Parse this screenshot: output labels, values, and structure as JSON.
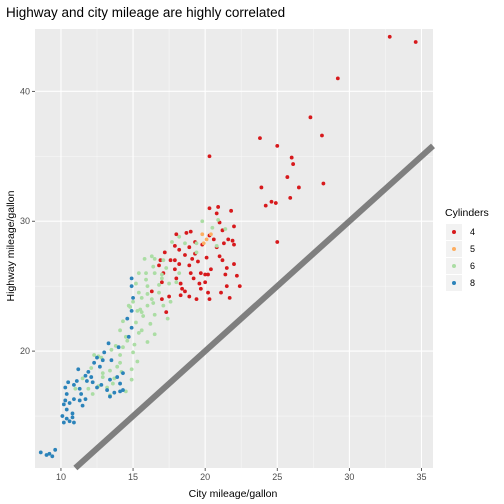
{
  "chart_data": {
    "type": "scatter",
    "title": "Highway and city mileage are highly correlated",
    "xlabel": "City mileage/gallon",
    "ylabel": "Highway mileage/gallon",
    "xlim": [
      8.2,
      35.8
    ],
    "ylim": [
      11,
      44.8
    ],
    "x_ticks": [
      10,
      15,
      20,
      25,
      30,
      35
    ],
    "y_ticks": [
      20,
      30,
      40
    ],
    "grid": true,
    "background": "#ebebeb",
    "reference_line": {
      "slope": 1,
      "intercept": 0,
      "color": "#7f7f7f"
    },
    "legend": {
      "title": "Cylinders",
      "placement": "right"
    },
    "series": [
      {
        "name": "4",
        "color": "#d7191c",
        "points": [
          [
            34.6,
            43.8
          ],
          [
            32.8,
            44.2
          ],
          [
            29.2,
            41.0
          ],
          [
            28.1,
            36.6
          ],
          [
            27.3,
            38.0
          ],
          [
            28.2,
            32.9
          ],
          [
            23.8,
            36.4
          ],
          [
            25.0,
            35.8
          ],
          [
            26.0,
            34.9
          ],
          [
            26.1,
            34.4
          ],
          [
            25.7,
            33.4
          ],
          [
            26.5,
            32.6
          ],
          [
            24.9,
            31.4
          ],
          [
            24.2,
            31.2
          ],
          [
            25.9,
            31.8
          ],
          [
            25.0,
            28.4
          ],
          [
            20.3,
            35.0
          ],
          [
            23.9,
            32.6
          ],
          [
            24.6,
            31.5
          ],
          [
            21.8,
            30.8
          ],
          [
            20.8,
            30.6
          ],
          [
            20.3,
            31.0
          ],
          [
            22.0,
            29.6
          ],
          [
            21.2,
            29.3
          ],
          [
            21.0,
            29.9
          ],
          [
            21.6,
            28.6
          ],
          [
            20.3,
            28.9
          ],
          [
            20.6,
            28.6
          ],
          [
            21.3,
            28.3
          ],
          [
            22.0,
            28.2
          ],
          [
            19.0,
            29.2
          ],
          [
            18.7,
            29.1
          ],
          [
            18.9,
            28.0
          ],
          [
            17.9,
            28.1
          ],
          [
            18.2,
            27.8
          ],
          [
            20.8,
            28.0
          ],
          [
            21.0,
            27.3
          ],
          [
            20.1,
            27.2
          ],
          [
            19.3,
            27.5
          ],
          [
            18.6,
            27.4
          ],
          [
            19.5,
            26.9
          ],
          [
            18.2,
            26.7
          ],
          [
            17.9,
            26.3
          ],
          [
            18.9,
            26.6
          ],
          [
            18.0,
            25.6
          ],
          [
            18.3,
            25.2
          ],
          [
            20.0,
            25.3
          ],
          [
            19.7,
            26.0
          ],
          [
            20.2,
            25.9
          ],
          [
            21.4,
            25.9
          ],
          [
            21.5,
            25.0
          ],
          [
            22.2,
            25.8
          ],
          [
            21.2,
            27.0
          ],
          [
            19.2,
            25.6
          ],
          [
            19.7,
            24.8
          ],
          [
            18.3,
            24.3
          ],
          [
            19.4,
            24.0
          ],
          [
            20.3,
            24.0
          ],
          [
            17.5,
            24.2
          ],
          [
            17.0,
            25.3
          ],
          [
            17.0,
            24.0
          ],
          [
            16.8,
            26.6
          ],
          [
            16.9,
            27.0
          ],
          [
            17.2,
            27.6
          ],
          [
            17.9,
            27.0
          ],
          [
            19.0,
            26.0
          ],
          [
            18.6,
            24.6
          ],
          [
            21.1,
            24.5
          ],
          [
            21.5,
            26.4
          ],
          [
            22.0,
            26.7
          ],
          [
            19.6,
            25.2
          ],
          [
            18.4,
            24.8
          ],
          [
            22.4,
            25.0
          ],
          [
            21.7,
            24.1
          ],
          [
            20.4,
            26.3
          ],
          [
            18.9,
            24.2
          ],
          [
            17.3,
            23.0
          ],
          [
            20.2,
            24.5
          ],
          [
            18.0,
            29.0
          ],
          [
            19.3,
            28.4
          ],
          [
            17.6,
            27.0
          ],
          [
            16.3,
            24.6
          ],
          [
            17.1,
            26.0
          ],
          [
            19.1,
            27.1
          ],
          [
            20.0,
            25.9
          ],
          [
            21.9,
            28.5
          ],
          [
            20.9,
            31.1
          ],
          [
            19.8,
            28.2
          ]
        ]
      },
      {
        "name": "5",
        "color": "#fdae61",
        "points": [
          [
            20.1,
            28.6
          ],
          [
            20.4,
            29.0
          ],
          [
            19.8,
            29.0
          ],
          [
            19.9,
            28.3
          ]
        ]
      },
      {
        "name": "6",
        "color": "#abdda4",
        "points": [
          [
            20.5,
            29.5
          ],
          [
            19.8,
            30.0
          ],
          [
            20.9,
            30.1
          ],
          [
            21.4,
            29.4
          ],
          [
            19.4,
            28.3
          ],
          [
            20.8,
            28.1
          ],
          [
            19.4,
            27.6
          ],
          [
            18.6,
            28.3
          ],
          [
            17.7,
            28.4
          ],
          [
            18.2,
            28.8
          ],
          [
            17.1,
            27.0
          ],
          [
            16.5,
            27.1
          ],
          [
            17.3,
            26.4
          ],
          [
            16.5,
            26.0
          ],
          [
            15.9,
            26.0
          ],
          [
            15.4,
            26.0
          ],
          [
            15.2,
            25.2
          ],
          [
            16.8,
            25.1
          ],
          [
            15.9,
            25.5
          ],
          [
            16.0,
            25.0
          ],
          [
            16.3,
            24.0
          ],
          [
            15.4,
            24.5
          ],
          [
            15.0,
            23.8
          ],
          [
            14.7,
            23.5
          ],
          [
            15.3,
            23.1
          ],
          [
            15.6,
            23.0
          ],
          [
            16.0,
            23.5
          ],
          [
            16.5,
            22.8
          ],
          [
            17.4,
            22.5
          ],
          [
            15.2,
            22.2
          ],
          [
            14.3,
            22.3
          ],
          [
            14.1,
            21.6
          ],
          [
            14.5,
            21.1
          ],
          [
            15.6,
            21.6
          ],
          [
            16.5,
            21.3
          ],
          [
            16.0,
            20.7
          ],
          [
            15.1,
            20.5
          ],
          [
            14.3,
            20.3
          ],
          [
            14.1,
            19.7
          ],
          [
            15.0,
            19.9
          ],
          [
            15.3,
            19.2
          ],
          [
            14.9,
            18.6
          ],
          [
            14.2,
            18.4
          ],
          [
            13.9,
            18.8
          ],
          [
            14.9,
            17.8
          ],
          [
            13.6,
            17.5
          ],
          [
            14.5,
            16.9
          ],
          [
            13.7,
            17.9
          ],
          [
            12.9,
            18.3
          ],
          [
            12.6,
            17.3
          ],
          [
            13.4,
            16.6
          ],
          [
            12.2,
            16.7
          ],
          [
            11.9,
            17.1
          ],
          [
            11.5,
            17.9
          ],
          [
            11.0,
            17.1
          ],
          [
            12.1,
            18.7
          ],
          [
            12.8,
            19.5
          ],
          [
            12.9,
            18.0
          ],
          [
            14.6,
            20.8
          ],
          [
            13.5,
            20.1
          ],
          [
            12.6,
            19.6
          ],
          [
            16.4,
            26.5
          ],
          [
            17.0,
            25.9
          ],
          [
            18.2,
            26.0
          ],
          [
            17.5,
            25.2
          ],
          [
            15.5,
            23.2
          ],
          [
            16.0,
            24.4
          ],
          [
            15.6,
            24.1
          ],
          [
            17.0,
            25.6
          ],
          [
            13.2,
            17.2
          ],
          [
            14.1,
            19.1
          ],
          [
            15.4,
            21.4
          ],
          [
            16.2,
            22.1
          ],
          [
            15.7,
            22.7
          ],
          [
            16.4,
            23.7
          ],
          [
            13.8,
            20.4
          ],
          [
            12.3,
            19.7
          ],
          [
            16.8,
            24.5
          ],
          [
            17.6,
            23.8
          ],
          [
            14.8,
            23.4
          ],
          [
            15.8,
            27.1
          ],
          [
            16.3,
            27.3
          ],
          [
            18.0,
            25.3
          ],
          [
            17.1,
            23.5
          ],
          [
            13.4,
            18.5
          ]
        ]
      },
      {
        "name": "8",
        "color": "#2b83ba",
        "points": [
          [
            8.6,
            12.2
          ],
          [
            9.0,
            12.0
          ],
          [
            9.4,
            11.9
          ],
          [
            9.2,
            12.1
          ],
          [
            9.6,
            12.4
          ],
          [
            10.1,
            15.0
          ],
          [
            10.4,
            14.8
          ],
          [
            10.2,
            14.5
          ],
          [
            10.6,
            14.6
          ],
          [
            10.8,
            14.9
          ],
          [
            10.4,
            15.5
          ],
          [
            10.8,
            15.2
          ],
          [
            10.9,
            14.5
          ],
          [
            10.3,
            16.2
          ],
          [
            10.9,
            16.3
          ],
          [
            10.4,
            16.7
          ],
          [
            10.3,
            17.2
          ],
          [
            10.5,
            17.6
          ],
          [
            10.9,
            17.4
          ],
          [
            11.3,
            17.1
          ],
          [
            11.4,
            16.7
          ],
          [
            11.3,
            16.2
          ],
          [
            11.7,
            16.3
          ],
          [
            11.5,
            15.8
          ],
          [
            11.7,
            18.1
          ],
          [
            11.9,
            18.4
          ],
          [
            12.1,
            18.0
          ],
          [
            12.3,
            19.1
          ],
          [
            12.5,
            19.5
          ],
          [
            12.9,
            19.3
          ],
          [
            13.0,
            19.9
          ],
          [
            13.3,
            20.6
          ],
          [
            12.2,
            17.6
          ],
          [
            12.5,
            17.2
          ],
          [
            13.4,
            17.8
          ],
          [
            13.2,
            17.0
          ],
          [
            13.7,
            16.8
          ],
          [
            13.4,
            16.5
          ],
          [
            14.1,
            16.9
          ],
          [
            14.3,
            17.0
          ],
          [
            14.1,
            17.5
          ],
          [
            13.9,
            18.0
          ],
          [
            14.3,
            18.3
          ],
          [
            14.9,
            21.8
          ],
          [
            14.9,
            23.1
          ],
          [
            14.6,
            22.5
          ],
          [
            15.0,
            24.1
          ],
          [
            14.9,
            25.0
          ],
          [
            14.9,
            25.6
          ],
          [
            14.7,
            21.1
          ],
          [
            10.6,
            16.0
          ],
          [
            11.1,
            17.7
          ],
          [
            12.8,
            17.4
          ],
          [
            11.2,
            18.6
          ],
          [
            12.7,
            18.8
          ],
          [
            10.2,
            15.9
          ],
          [
            11.8,
            17.7
          ],
          [
            13.5,
            19.3
          ],
          [
            14.0,
            20.3
          ]
        ]
      }
    ]
  }
}
